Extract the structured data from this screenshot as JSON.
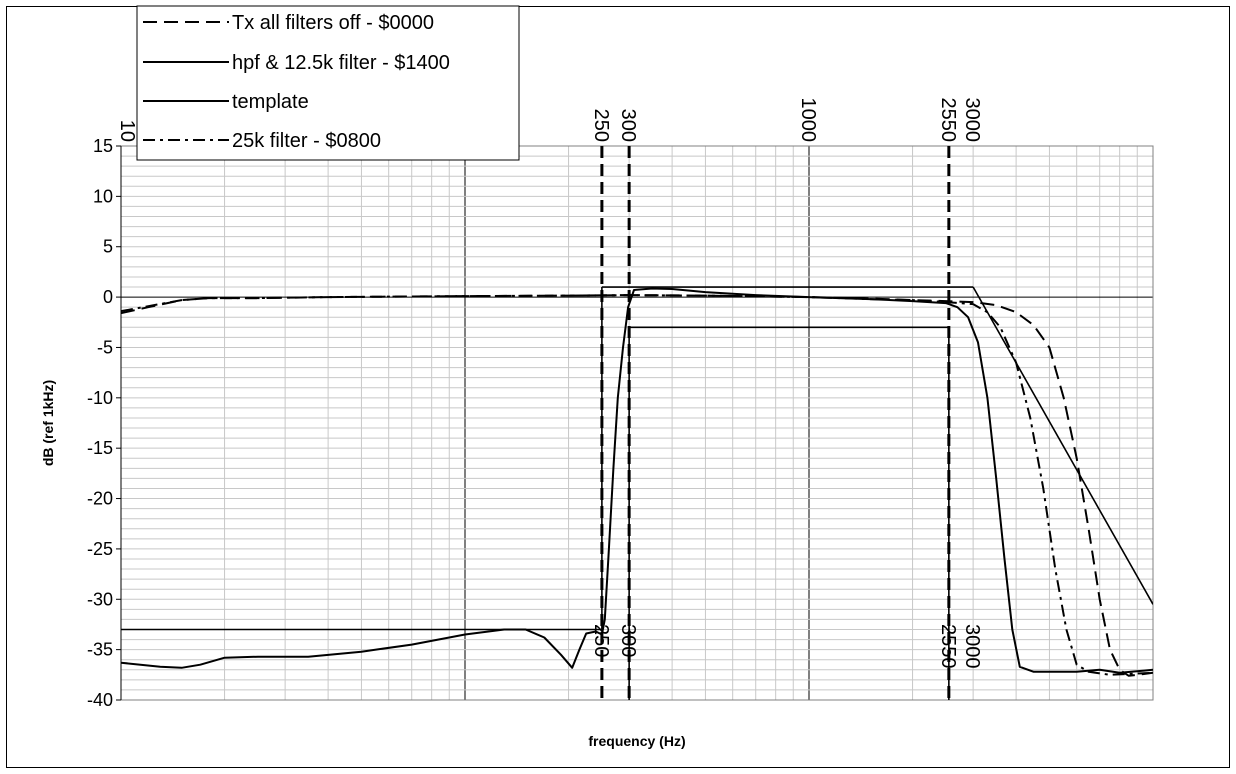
{
  "chart_data": {
    "type": "line",
    "xscale": "log",
    "xlim": [
      10,
      10000
    ],
    "ylim": [
      -40,
      15
    ],
    "grid": true,
    "legend_position": "top-left",
    "xlabel": "frequency (Hz)",
    "ylabel": "dB (ref 1kHz)",
    "y_ticks": [
      15,
      10,
      5,
      0,
      -5,
      -10,
      -15,
      -20,
      -25,
      -30,
      -35,
      -40
    ],
    "y_tick_labels": [
      "15",
      "10",
      "5",
      "0",
      "-5",
      "-10",
      "-15",
      "-20",
      "-25",
      "-30",
      "-35",
      "-40"
    ],
    "top_freq_labels": [
      "10",
      "250",
      "300",
      "1000",
      "2550",
      "3000"
    ],
    "bottom_freq_labels": [
      "250",
      "300",
      "2550",
      "3000"
    ],
    "markers": [
      250,
      300,
      2550
    ],
    "series": [
      {
        "name": "Tx all filters off - $0000",
        "style": "dashed",
        "points": [
          [
            10,
            -1.6
          ],
          [
            12,
            -1.0
          ],
          [
            15,
            -0.3
          ],
          [
            18,
            -0.1
          ],
          [
            25,
            -0.1
          ],
          [
            40,
            0.0
          ],
          [
            100,
            0.1
          ],
          [
            200,
            0.15
          ],
          [
            300,
            0.2
          ],
          [
            500,
            0.15
          ],
          [
            1000,
            0.0
          ],
          [
            1500,
            -0.15
          ],
          [
            2000,
            -0.3
          ],
          [
            2500,
            -0.4
          ],
          [
            3000,
            -0.5
          ],
          [
            3500,
            -0.8
          ],
          [
            4000,
            -1.5
          ],
          [
            4500,
            -2.8
          ],
          [
            5000,
            -5.0
          ],
          [
            5500,
            -10
          ],
          [
            6000,
            -16
          ],
          [
            6500,
            -23
          ],
          [
            7000,
            -30
          ],
          [
            7500,
            -35
          ],
          [
            8000,
            -37
          ],
          [
            8500,
            -37.6
          ],
          [
            9000,
            -37.5
          ],
          [
            10000,
            -37.3
          ]
        ]
      },
      {
        "name": "hpf & 12.5k filter - $1400",
        "style": "solid",
        "points": [
          [
            10,
            -36.3
          ],
          [
            13,
            -36.7
          ],
          [
            15,
            -36.8
          ],
          [
            17,
            -36.5
          ],
          [
            20,
            -35.8
          ],
          [
            25,
            -35.7
          ],
          [
            35,
            -35.7
          ],
          [
            50,
            -35.2
          ],
          [
            70,
            -34.5
          ],
          [
            100,
            -33.5
          ],
          [
            130,
            -33.0
          ],
          [
            150,
            -33.0
          ],
          [
            170,
            -33.8
          ],
          [
            190,
            -35.5
          ],
          [
            205,
            -36.8
          ],
          [
            215,
            -35.0
          ],
          [
            225,
            -33.4
          ],
          [
            240,
            -33.2
          ],
          [
            250,
            -33.5
          ],
          [
            255,
            -32.0
          ],
          [
            262,
            -25
          ],
          [
            270,
            -17
          ],
          [
            278,
            -10
          ],
          [
            288,
            -5
          ],
          [
            298,
            -1
          ],
          [
            310,
            0.7
          ],
          [
            350,
            0.85
          ],
          [
            400,
            0.8
          ],
          [
            500,
            0.5
          ],
          [
            700,
            0.2
          ],
          [
            1000,
            0.0
          ],
          [
            1500,
            -0.2
          ],
          [
            2000,
            -0.4
          ],
          [
            2500,
            -0.6
          ],
          [
            2700,
            -1.0
          ],
          [
            2900,
            -2.0
          ],
          [
            3100,
            -4.5
          ],
          [
            3300,
            -10
          ],
          [
            3500,
            -18
          ],
          [
            3700,
            -26
          ],
          [
            3900,
            -33
          ],
          [
            4100,
            -36.7
          ],
          [
            4500,
            -37.2
          ],
          [
            6000,
            -37.2
          ],
          [
            7000,
            -37.0
          ],
          [
            8000,
            -37.3
          ],
          [
            10000,
            -37.0
          ]
        ]
      },
      {
        "name": "template",
        "style": "solid",
        "points": []
      },
      {
        "name": "25k filter - $0800",
        "style": "dashdot",
        "points": [
          [
            10,
            -1.4
          ],
          [
            12,
            -0.9
          ],
          [
            15,
            -0.3
          ],
          [
            18,
            -0.1
          ],
          [
            25,
            -0.1
          ],
          [
            40,
            0.0
          ],
          [
            100,
            0.1
          ],
          [
            200,
            0.15
          ],
          [
            300,
            0.2
          ],
          [
            500,
            0.15
          ],
          [
            1000,
            0.0
          ],
          [
            1500,
            -0.2
          ],
          [
            2000,
            -0.3
          ],
          [
            2500,
            -0.5
          ],
          [
            3000,
            -0.7
          ],
          [
            3300,
            -1.5
          ],
          [
            3600,
            -3.0
          ],
          [
            4000,
            -6.5
          ],
          [
            4400,
            -12
          ],
          [
            4800,
            -19
          ],
          [
            5200,
            -27
          ],
          [
            5600,
            -33
          ],
          [
            6000,
            -36.5
          ],
          [
            6500,
            -37.2
          ],
          [
            7500,
            -37.5
          ],
          [
            10000,
            -37.3
          ]
        ]
      }
    ],
    "template_segments": [
      [
        [
          10,
          -33
        ],
        [
          250,
          -33
        ]
      ],
      [
        [
          250,
          -33
        ],
        [
          250,
          1
        ]
      ],
      [
        [
          250,
          1
        ],
        [
          3000,
          1
        ]
      ],
      [
        [
          3000,
          1
        ],
        [
          10000,
          -30.5
        ]
      ],
      [
        [
          300,
          -40
        ],
        [
          300,
          -3
        ]
      ],
      [
        [
          300,
          -3
        ],
        [
          2550,
          -3
        ]
      ],
      [
        [
          2550,
          -3
        ],
        [
          2550,
          -40
        ]
      ]
    ]
  }
}
